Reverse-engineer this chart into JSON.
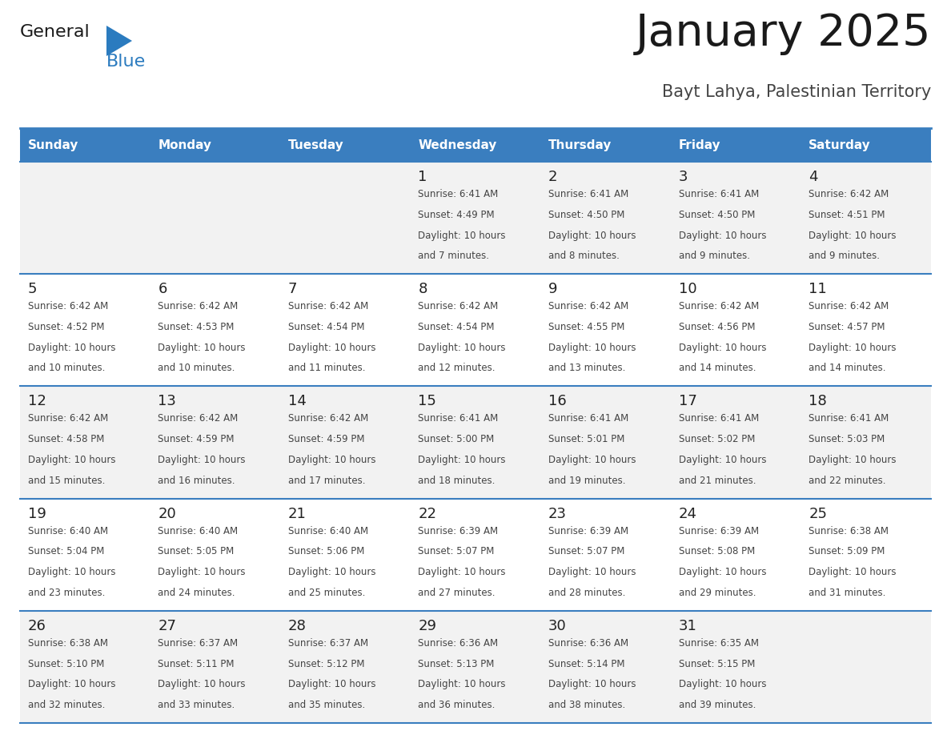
{
  "title": "January 2025",
  "subtitle": "Bayt Lahya, Palestinian Territory",
  "days_of_week": [
    "Sunday",
    "Monday",
    "Tuesday",
    "Wednesday",
    "Thursday",
    "Friday",
    "Saturday"
  ],
  "header_bg": "#3a7ebf",
  "header_text": "#ffffff",
  "cell_bg_light": "#f2f2f2",
  "cell_bg_white": "#ffffff",
  "separator_color": "#3a7ebf",
  "logo_dark_color": "#1a1a1a",
  "logo_blue_color": "#2b7bbf",
  "title_color": "#1a1a1a",
  "subtitle_color": "#444444",
  "day_num_color": "#222222",
  "info_text_color": "#444444",
  "calendar_data": [
    [
      {
        "day": null,
        "sunrise": null,
        "sunset": null,
        "daylight_min": null
      },
      {
        "day": null,
        "sunrise": null,
        "sunset": null,
        "daylight_min": null
      },
      {
        "day": null,
        "sunrise": null,
        "sunset": null,
        "daylight_min": null
      },
      {
        "day": 1,
        "sunrise": "6:41 AM",
        "sunset": "4:49 PM",
        "daylight_min": 7
      },
      {
        "day": 2,
        "sunrise": "6:41 AM",
        "sunset": "4:50 PM",
        "daylight_min": 8
      },
      {
        "day": 3,
        "sunrise": "6:41 AM",
        "sunset": "4:50 PM",
        "daylight_min": 9
      },
      {
        "day": 4,
        "sunrise": "6:42 AM",
        "sunset": "4:51 PM",
        "daylight_min": 9
      }
    ],
    [
      {
        "day": 5,
        "sunrise": "6:42 AM",
        "sunset": "4:52 PM",
        "daylight_min": 10
      },
      {
        "day": 6,
        "sunrise": "6:42 AM",
        "sunset": "4:53 PM",
        "daylight_min": 10
      },
      {
        "day": 7,
        "sunrise": "6:42 AM",
        "sunset": "4:54 PM",
        "daylight_min": 11
      },
      {
        "day": 8,
        "sunrise": "6:42 AM",
        "sunset": "4:54 PM",
        "daylight_min": 12
      },
      {
        "day": 9,
        "sunrise": "6:42 AM",
        "sunset": "4:55 PM",
        "daylight_min": 13
      },
      {
        "day": 10,
        "sunrise": "6:42 AM",
        "sunset": "4:56 PM",
        "daylight_min": 14
      },
      {
        "day": 11,
        "sunrise": "6:42 AM",
        "sunset": "4:57 PM",
        "daylight_min": 14
      }
    ],
    [
      {
        "day": 12,
        "sunrise": "6:42 AM",
        "sunset": "4:58 PM",
        "daylight_min": 15
      },
      {
        "day": 13,
        "sunrise": "6:42 AM",
        "sunset": "4:59 PM",
        "daylight_min": 16
      },
      {
        "day": 14,
        "sunrise": "6:42 AM",
        "sunset": "4:59 PM",
        "daylight_min": 17
      },
      {
        "day": 15,
        "sunrise": "6:41 AM",
        "sunset": "5:00 PM",
        "daylight_min": 18
      },
      {
        "day": 16,
        "sunrise": "6:41 AM",
        "sunset": "5:01 PM",
        "daylight_min": 19
      },
      {
        "day": 17,
        "sunrise": "6:41 AM",
        "sunset": "5:02 PM",
        "daylight_min": 21
      },
      {
        "day": 18,
        "sunrise": "6:41 AM",
        "sunset": "5:03 PM",
        "daylight_min": 22
      }
    ],
    [
      {
        "day": 19,
        "sunrise": "6:40 AM",
        "sunset": "5:04 PM",
        "daylight_min": 23
      },
      {
        "day": 20,
        "sunrise": "6:40 AM",
        "sunset": "5:05 PM",
        "daylight_min": 24
      },
      {
        "day": 21,
        "sunrise": "6:40 AM",
        "sunset": "5:06 PM",
        "daylight_min": 25
      },
      {
        "day": 22,
        "sunrise": "6:39 AM",
        "sunset": "5:07 PM",
        "daylight_min": 27
      },
      {
        "day": 23,
        "sunrise": "6:39 AM",
        "sunset": "5:07 PM",
        "daylight_min": 28
      },
      {
        "day": 24,
        "sunrise": "6:39 AM",
        "sunset": "5:08 PM",
        "daylight_min": 29
      },
      {
        "day": 25,
        "sunrise": "6:38 AM",
        "sunset": "5:09 PM",
        "daylight_min": 31
      }
    ],
    [
      {
        "day": 26,
        "sunrise": "6:38 AM",
        "sunset": "5:10 PM",
        "daylight_min": 32
      },
      {
        "day": 27,
        "sunrise": "6:37 AM",
        "sunset": "5:11 PM",
        "daylight_min": 33
      },
      {
        "day": 28,
        "sunrise": "6:37 AM",
        "sunset": "5:12 PM",
        "daylight_min": 35
      },
      {
        "day": 29,
        "sunrise": "6:36 AM",
        "sunset": "5:13 PM",
        "daylight_min": 36
      },
      {
        "day": 30,
        "sunrise": "6:36 AM",
        "sunset": "5:14 PM",
        "daylight_min": 38
      },
      {
        "day": 31,
        "sunrise": "6:35 AM",
        "sunset": "5:15 PM",
        "daylight_min": 39
      },
      {
        "day": null,
        "sunrise": null,
        "sunset": null,
        "daylight_min": null
      }
    ]
  ]
}
